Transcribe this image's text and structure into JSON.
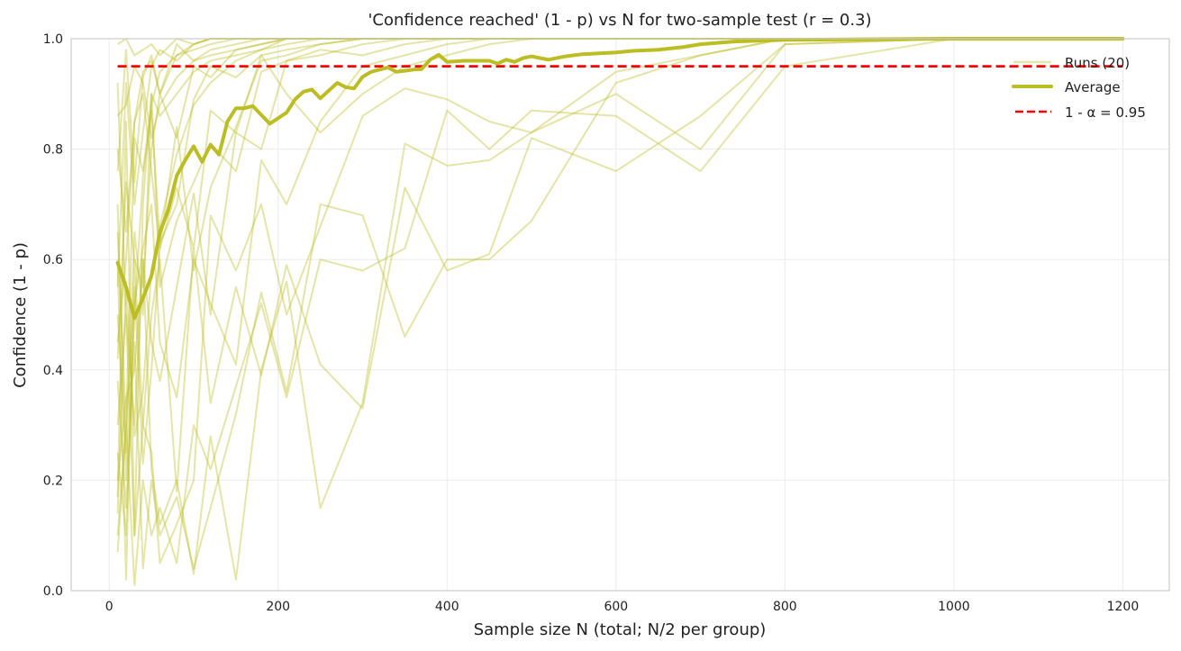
{
  "chart_data": {
    "type": "line",
    "title": "'Confidence reached' (1 - p) vs N for two-sample test (r = 0.3)",
    "xlabel": "Sample size N (total; N/2 per group)",
    "ylabel": "Confidence (1 - p)",
    "xlim": [
      -45,
      1255
    ],
    "ylim": [
      0,
      1
    ],
    "xticks": [
      0,
      200,
      400,
      600,
      800,
      1000,
      1200
    ],
    "yticks": [
      0.0,
      0.2,
      0.4,
      0.6,
      0.8,
      1.0
    ],
    "ytick_labels": [
      "0.0",
      "0.2",
      "0.4",
      "0.6",
      "0.8",
      "1.0"
    ],
    "grid": true,
    "legend_position": "top-right",
    "colors": {
      "runs": "#bcbd22",
      "average": "#bcbd22",
      "threshold": "#ff0000"
    },
    "legend": [
      "Runs (20)",
      "Average",
      "1 - α = 0.95"
    ],
    "threshold": 0.95,
    "runs_x": [
      10,
      20,
      30,
      40,
      50,
      60,
      80,
      100,
      120,
      150,
      180,
      210,
      250,
      300,
      350,
      400,
      450,
      500,
      600,
      700,
      800,
      1000,
      1200
    ],
    "runs": [
      [
        0.07,
        0.3,
        0.01,
        0.2,
        0.1,
        0.15,
        0.05,
        0.3,
        0.22,
        0.37,
        0.52,
        0.35,
        0.6,
        0.58,
        0.62,
        0.87,
        0.8,
        0.87,
        0.86,
        0.76,
        0.95,
        1,
        1
      ],
      [
        0.92,
        0.5,
        0.3,
        0.6,
        0.22,
        0.12,
        0.2,
        0.03,
        0.28,
        0.02,
        0.4,
        0.56,
        0.15,
        0.34,
        0.81,
        0.77,
        0.78,
        0.83,
        0.9,
        0.8,
        0.99,
        1,
        1
      ],
      [
        0.38,
        0.15,
        0.45,
        0.04,
        0.2,
        0.1,
        0.17,
        0.04,
        0.15,
        0.32,
        0.54,
        0.36,
        0.7,
        0.68,
        0.46,
        0.6,
        0.6,
        0.67,
        0.92,
        0.97,
        1,
        1,
        1
      ],
      [
        0.17,
        0.85,
        0.1,
        0.3,
        0.5,
        0.6,
        0.18,
        0.62,
        0.34,
        0.55,
        0.39,
        0.59,
        0.41,
        0.33,
        0.73,
        0.58,
        0.61,
        0.82,
        0.76,
        0.86,
        0.99,
        1,
        1
      ],
      [
        0.6,
        0.02,
        0.6,
        0.3,
        0.25,
        0.05,
        0.12,
        0.2,
        0.68,
        0.58,
        0.7,
        0.5,
        0.66,
        0.86,
        0.91,
        0.89,
        0.85,
        0.83,
        0.94,
        0.97,
        1,
        1,
        1
      ],
      [
        0.99,
        1,
        0.97,
        0.98,
        0.99,
        0.97,
        1,
        0.99,
        1,
        1,
        1,
        1,
        1,
        1,
        1,
        1,
        1,
        1,
        1,
        1,
        1,
        1,
        1
      ],
      [
        0.86,
        0.88,
        0.95,
        0.92,
        0.82,
        0.88,
        0.93,
        0.96,
        0.97,
        0.98,
        0.99,
        1,
        1,
        1,
        1,
        1,
        1,
        1,
        1,
        1,
        1,
        1,
        1
      ],
      [
        0.76,
        0.98,
        0.74,
        0.93,
        0.97,
        0.9,
        0.99,
        0.96,
        0.98,
        0.99,
        1,
        1,
        1,
        1,
        1,
        1,
        1,
        1,
        1,
        1,
        1,
        1,
        1
      ],
      [
        0.45,
        0.6,
        0.85,
        0.9,
        0.76,
        0.62,
        0.84,
        0.58,
        0.73,
        0.84,
        0.96,
        0.97,
        0.99,
        1,
        1,
        1,
        1,
        1,
        1,
        1,
        1,
        1,
        1
      ],
      [
        0.7,
        0.2,
        0.5,
        0.75,
        0.87,
        0.63,
        0.7,
        0.89,
        0.95,
        0.93,
        0.97,
        0.98,
        0.99,
        1,
        1,
        1,
        1,
        1,
        1,
        1,
        1,
        1,
        1
      ],
      [
        0.3,
        0.5,
        0.1,
        0.7,
        0.9,
        0.55,
        0.67,
        0.74,
        0.81,
        0.76,
        0.94,
        0.96,
        0.97,
        0.99,
        1,
        1,
        1,
        1,
        1,
        1,
        1,
        1,
        1
      ],
      [
        0.55,
        0.92,
        0.7,
        0.83,
        0.95,
        0.98,
        0.96,
        0.99,
        1,
        1,
        1,
        1,
        1,
        1,
        1,
        1,
        1,
        1,
        1,
        1,
        1,
        1,
        1
      ],
      [
        0.1,
        0.3,
        0.55,
        0.23,
        0.4,
        0.62,
        0.73,
        0.62,
        0.87,
        0.83,
        0.8,
        0.96,
        0.98,
        0.97,
        0.99,
        1,
        1,
        1,
        1,
        1,
        1,
        1,
        1
      ],
      [
        0.5,
        0.25,
        0.65,
        0.5,
        0.9,
        0.86,
        0.9,
        0.94,
        0.96,
        0.97,
        0.98,
        1,
        1,
        1,
        1,
        1,
        1,
        1,
        1,
        1,
        1,
        1,
        1
      ],
      [
        0.8,
        0.65,
        0.85,
        0.94,
        0.96,
        0.9,
        0.97,
        0.98,
        0.99,
        1,
        1,
        1,
        1,
        1,
        1,
        1,
        1,
        1,
        1,
        1,
        1,
        1,
        1
      ],
      [
        0.2,
        0.35,
        0.4,
        0.6,
        0.45,
        0.38,
        0.55,
        0.72,
        0.5,
        0.83,
        0.97,
        0.9,
        0.83,
        0.9,
        0.95,
        0.97,
        0.99,
        1,
        1,
        1,
        1,
        1,
        1
      ],
      [
        0.65,
        0.3,
        0.82,
        0.76,
        0.88,
        0.94,
        0.97,
        0.99,
        1,
        1,
        1,
        1,
        1,
        1,
        1,
        1,
        1,
        1,
        1,
        1,
        1,
        1,
        1
      ],
      [
        0.42,
        0.74,
        0.6,
        0.55,
        0.8,
        0.9,
        0.82,
        0.95,
        0.93,
        0.98,
        0.99,
        1,
        1,
        1,
        1,
        1,
        1,
        1,
        1,
        1,
        1,
        1,
        1
      ],
      [
        0.25,
        0.1,
        0.52,
        0.62,
        0.7,
        0.45,
        0.35,
        0.6,
        0.52,
        0.41,
        0.78,
        0.7,
        0.85,
        0.95,
        0.97,
        0.99,
        1,
        1,
        1,
        1,
        1,
        1,
        1
      ],
      [
        0.14,
        0.56,
        0.28,
        0.36,
        0.58,
        0.66,
        0.79,
        0.88,
        0.92,
        0.96,
        0.98,
        0.99,
        1,
        1,
        1,
        1,
        1,
        1,
        1,
        1,
        1,
        1,
        1
      ]
    ],
    "average": {
      "x": [
        10,
        20,
        30,
        40,
        50,
        60,
        70,
        80,
        90,
        100,
        110,
        120,
        130,
        140,
        150,
        160,
        170,
        180,
        190,
        200,
        210,
        220,
        230,
        240,
        250,
        260,
        270,
        280,
        290,
        300,
        310,
        320,
        330,
        340,
        350,
        360,
        370,
        380,
        390,
        400,
        420,
        450,
        460,
        470,
        480,
        490,
        500,
        510,
        520,
        540,
        560,
        600,
        620,
        650,
        680,
        700,
        740,
        800,
        1000,
        1200
      ],
      "y": [
        0.594,
        0.55,
        0.494,
        0.53,
        0.57,
        0.649,
        0.69,
        0.752,
        0.78,
        0.805,
        0.777,
        0.808,
        0.79,
        0.85,
        0.874,
        0.874,
        0.878,
        0.862,
        0.846,
        0.856,
        0.866,
        0.89,
        0.904,
        0.908,
        0.892,
        0.906,
        0.92,
        0.912,
        0.91,
        0.931,
        0.94,
        0.944,
        0.948,
        0.94,
        0.942,
        0.944,
        0.945,
        0.962,
        0.971,
        0.958,
        0.96,
        0.96,
        0.955,
        0.962,
        0.958,
        0.965,
        0.968,
        0.965,
        0.962,
        0.968,
        0.972,
        0.975,
        0.978,
        0.98,
        0.985,
        0.99,
        0.995,
        0.998,
        1.0,
        1.0
      ]
    }
  }
}
